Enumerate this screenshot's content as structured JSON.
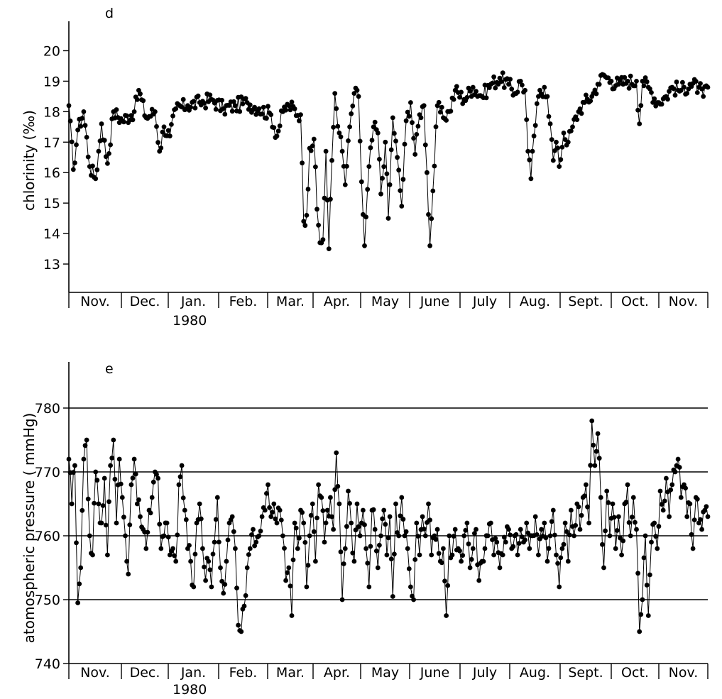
{
  "chart_data": [
    {
      "id": "d",
      "type": "line",
      "panel_label": "d",
      "ylabel": "chlorinity (‰)",
      "ylim": [
        12,
        20.5
      ],
      "yticks": [
        13,
        14,
        15,
        16,
        17,
        18,
        19,
        20
      ],
      "grid": false,
      "months": [
        "Nov.",
        "Dec.",
        "Jan.",
        "Feb.",
        "Mar.",
        "Apr.",
        "May",
        "June",
        "July",
        "Aug.",
        "Sept.",
        "Oct.",
        "Nov."
      ],
      "year_label": "1980",
      "x_unit": "days since 1 Nov 1979",
      "key_points": [
        [
          0,
          18.2
        ],
        [
          3,
          16.1
        ],
        [
          6,
          17.4
        ],
        [
          10,
          18.0
        ],
        [
          14,
          16.2
        ],
        [
          18,
          15.8
        ],
        [
          22,
          17.6
        ],
        [
          26,
          16.3
        ],
        [
          30,
          18.0
        ],
        [
          36,
          17.7
        ],
        [
          44,
          18.0
        ],
        [
          47,
          18.7
        ],
        [
          52,
          17.8
        ],
        [
          58,
          18.0
        ],
        [
          61,
          16.7
        ],
        [
          64,
          17.5
        ],
        [
          68,
          17.2
        ],
        [
          72,
          18.1
        ],
        [
          80,
          18.2
        ],
        [
          88,
          18.3
        ],
        [
          96,
          18.4
        ],
        [
          104,
          18.1
        ],
        [
          112,
          18.2
        ],
        [
          120,
          18.3
        ],
        [
          128,
          18.1
        ],
        [
          136,
          17.9
        ],
        [
          140,
          17.2
        ],
        [
          144,
          18.0
        ],
        [
          148,
          18.2
        ],
        [
          156,
          17.9
        ],
        [
          158,
          14.4
        ],
        [
          160,
          14.6
        ],
        [
          162,
          16.8
        ],
        [
          165,
          17.1
        ],
        [
          167,
          14.8
        ],
        [
          169,
          13.7
        ],
        [
          171,
          13.8
        ],
        [
          173,
          16.7
        ],
        [
          175,
          13.5
        ],
        [
          177,
          16.4
        ],
        [
          179,
          18.6
        ],
        [
          182,
          17.3
        ],
        [
          184,
          16.7
        ],
        [
          186,
          15.6
        ],
        [
          189,
          17.5
        ],
        [
          192,
          18.6
        ],
        [
          195,
          18.5
        ],
        [
          197,
          15.7
        ],
        [
          199,
          13.6
        ],
        [
          202,
          16.2
        ],
        [
          205,
          17.5
        ],
        [
          208,
          17.3
        ],
        [
          210,
          15.3
        ],
        [
          213,
          17.0
        ],
        [
          215,
          14.5
        ],
        [
          218,
          17.8
        ],
        [
          221,
          16.5
        ],
        [
          224,
          14.9
        ],
        [
          227,
          17.7
        ],
        [
          230,
          18.3
        ],
        [
          233,
          16.6
        ],
        [
          236,
          17.9
        ],
        [
          239,
          18.2
        ],
        [
          241,
          16.0
        ],
        [
          243,
          13.6
        ],
        [
          245,
          15.4
        ],
        [
          248,
          18.2
        ],
        [
          252,
          17.8
        ],
        [
          256,
          18.0
        ],
        [
          260,
          18.7
        ],
        [
          266,
          18.4
        ],
        [
          272,
          18.8
        ],
        [
          278,
          18.5
        ],
        [
          284,
          18.9
        ],
        [
          290,
          19.1
        ],
        [
          296,
          18.9
        ],
        [
          300,
          18.6
        ],
        [
          304,
          19.0
        ],
        [
          307,
          18.7
        ],
        [
          309,
          16.7
        ],
        [
          311,
          15.8
        ],
        [
          313,
          17.2
        ],
        [
          316,
          18.5
        ],
        [
          320,
          18.8
        ],
        [
          322,
          18.5
        ],
        [
          324,
          17.6
        ],
        [
          326,
          16.4
        ],
        [
          328,
          17.0
        ],
        [
          330,
          16.2
        ],
        [
          333,
          17.3
        ],
        [
          336,
          17.0
        ],
        [
          339,
          17.5
        ],
        [
          343,
          18.0
        ],
        [
          347,
          18.3
        ],
        [
          352,
          18.5
        ],
        [
          356,
          18.9
        ],
        [
          360,
          19.2
        ],
        [
          365,
          19.0
        ],
        [
          370,
          18.9
        ],
        [
          376,
          19.0
        ],
        [
          382,
          19.0
        ],
        [
          384,
          17.6
        ],
        [
          386,
          19.0
        ],
        [
          390,
          18.8
        ],
        [
          396,
          18.3
        ],
        [
          402,
          18.5
        ],
        [
          406,
          18.8
        ],
        [
          412,
          18.7
        ],
        [
          418,
          18.9
        ],
        [
          424,
          18.8
        ],
        [
          427,
          18.5
        ],
        [
          430,
          18.8
        ]
      ]
    },
    {
      "id": "e",
      "type": "line",
      "panel_label": "e",
      "ylabel": "atomospheric pressure ( mmHg)",
      "ylim": [
        740,
        785
      ],
      "yticks": [
        740,
        750,
        760,
        770,
        780
      ],
      "grid": true,
      "grid_lines": [
        750,
        760,
        770,
        780
      ],
      "months": [
        "Nov.",
        "Dec.",
        "Jan.",
        "Feb.",
        "Mar.",
        "Apr.",
        "May",
        "June",
        "July",
        "Aug.",
        "Sept.",
        "Oct.",
        "Nov."
      ],
      "year_label": "1980",
      "x_unit": "days since 1 Nov 1979",
      "key_points": [
        [
          0,
          772
        ],
        [
          2,
          765
        ],
        [
          4,
          771
        ],
        [
          6,
          749.5
        ],
        [
          8,
          755
        ],
        [
          10,
          772
        ],
        [
          12,
          775
        ],
        [
          14,
          760
        ],
        [
          16,
          757
        ],
        [
          18,
          770
        ],
        [
          20,
          765
        ],
        [
          22,
          762
        ],
        [
          24,
          769
        ],
        [
          26,
          757
        ],
        [
          28,
          771
        ],
        [
          30,
          775
        ],
        [
          32,
          762
        ],
        [
          34,
          772
        ],
        [
          36,
          766
        ],
        [
          38,
          760
        ],
        [
          40,
          754
        ],
        [
          42,
          768
        ],
        [
          44,
          772
        ],
        [
          46,
          765
        ],
        [
          48,
          763
        ],
        [
          50,
          761
        ],
        [
          52,
          758
        ],
        [
          54,
          764
        ],
        [
          56,
          766
        ],
        [
          58,
          770
        ],
        [
          60,
          769
        ],
        [
          62,
          758
        ],
        [
          64,
          760
        ],
        [
          66,
          762
        ],
        [
          68,
          757
        ],
        [
          70,
          758
        ],
        [
          72,
          756
        ],
        [
          74,
          768
        ],
        [
          76,
          771
        ],
        [
          78,
          764
        ],
        [
          80,
          758
        ],
        [
          82,
          756
        ],
        [
          84,
          752
        ],
        [
          86,
          762
        ],
        [
          88,
          765
        ],
        [
          90,
          758
        ],
        [
          92,
          753
        ],
        [
          94,
          756
        ],
        [
          96,
          752
        ],
        [
          98,
          759
        ],
        [
          100,
          766
        ],
        [
          102,
          755
        ],
        [
          104,
          751
        ],
        [
          106,
          756
        ],
        [
          108,
          762
        ],
        [
          110,
          763
        ],
        [
          112,
          758
        ],
        [
          114,
          746
        ],
        [
          116,
          745
        ],
        [
          118,
          749
        ],
        [
          120,
          755
        ],
        [
          122,
          758
        ],
        [
          124,
          761
        ],
        [
          126,
          759
        ],
        [
          128,
          760
        ],
        [
          130,
          763
        ],
        [
          132,
          764
        ],
        [
          134,
          768
        ],
        [
          136,
          763
        ],
        [
          138,
          765
        ],
        [
          140,
          762
        ],
        [
          142,
          764
        ],
        [
          144,
          760
        ],
        [
          146,
          753
        ],
        [
          148,
          755
        ],
        [
          150,
          747.5
        ],
        [
          152,
          762
        ],
        [
          154,
          758
        ],
        [
          156,
          764
        ],
        [
          158,
          762
        ],
        [
          160,
          752
        ],
        [
          162,
          760
        ],
        [
          164,
          765
        ],
        [
          166,
          756
        ],
        [
          168,
          768
        ],
        [
          170,
          766
        ],
        [
          172,
          759
        ],
        [
          174,
          764
        ],
        [
          176,
          766
        ],
        [
          178,
          761
        ],
        [
          180,
          773
        ],
        [
          182,
          765
        ],
        [
          184,
          750
        ],
        [
          186,
          758
        ],
        [
          188,
          767
        ],
        [
          190,
          762
        ],
        [
          192,
          756
        ],
        [
          194,
          765
        ],
        [
          196,
          760
        ],
        [
          198,
          764
        ],
        [
          200,
          758
        ],
        [
          202,
          752
        ],
        [
          204,
          764
        ],
        [
          206,
          761
        ],
        [
          208,
          755
        ],
        [
          210,
          760
        ],
        [
          212,
          764
        ],
        [
          214,
          757
        ],
        [
          216,
          763
        ],
        [
          218,
          750.5
        ],
        [
          220,
          765
        ],
        [
          222,
          760
        ],
        [
          224,
          766
        ],
        [
          226,
          760
        ],
        [
          228,
          758
        ],
        [
          230,
          752
        ],
        [
          232,
          750
        ],
        [
          234,
          762
        ],
        [
          236,
          757
        ],
        [
          238,
          763
        ],
        [
          240,
          760
        ],
        [
          242,
          765
        ],
        [
          244,
          757
        ],
        [
          246,
          760
        ],
        [
          248,
          761
        ],
        [
          250,
          756
        ],
        [
          252,
          758
        ],
        [
          254,
          747.5
        ],
        [
          256,
          760
        ],
        [
          258,
          757
        ],
        [
          260,
          761
        ],
        [
          262,
          758
        ],
        [
          264,
          756
        ],
        [
          266,
          760
        ],
        [
          268,
          762
        ],
        [
          270,
          755
        ],
        [
          272,
          758
        ],
        [
          274,
          761
        ],
        [
          276,
          753
        ],
        [
          278,
          756
        ],
        [
          280,
          758
        ],
        [
          282,
          760
        ],
        [
          284,
          762
        ],
        [
          286,
          757
        ],
        [
          288,
          759
        ],
        [
          290,
          755
        ],
        [
          292,
          757
        ],
        [
          294,
          759
        ],
        [
          296,
          761
        ],
        [
          298,
          758
        ],
        [
          300,
          760
        ],
        [
          302,
          757
        ],
        [
          304,
          761
        ],
        [
          306,
          759
        ],
        [
          308,
          762
        ],
        [
          310,
          758
        ],
        [
          312,
          760
        ],
        [
          314,
          763
        ],
        [
          316,
          757
        ],
        [
          318,
          761
        ],
        [
          320,
          762
        ],
        [
          322,
          756
        ],
        [
          324,
          760
        ],
        [
          326,
          764
        ],
        [
          328,
          757
        ],
        [
          330,
          752
        ],
        [
          332,
          758
        ],
        [
          334,
          762
        ],
        [
          336,
          756
        ],
        [
          338,
          764
        ],
        [
          340,
          760
        ],
        [
          342,
          765
        ],
        [
          344,
          761
        ],
        [
          346,
          766
        ],
        [
          348,
          768
        ],
        [
          350,
          762
        ],
        [
          352,
          778
        ],
        [
          354,
          771
        ],
        [
          356,
          776
        ],
        [
          358,
          766
        ],
        [
          360,
          755
        ],
        [
          362,
          767
        ],
        [
          364,
          760
        ],
        [
          366,
          765
        ],
        [
          368,
          758
        ],
        [
          370,
          763
        ],
        [
          372,
          757
        ],
        [
          374,
          765
        ],
        [
          376,
          768
        ],
        [
          378,
          760
        ],
        [
          380,
          766
        ],
        [
          382,
          761
        ],
        [
          384,
          745
        ],
        [
          386,
          750
        ],
        [
          388,
          760
        ],
        [
          390,
          747.5
        ],
        [
          392,
          759
        ],
        [
          394,
          762
        ],
        [
          396,
          758
        ],
        [
          398,
          767
        ],
        [
          400,
          764
        ],
        [
          402,
          769
        ],
        [
          404,
          763
        ],
        [
          406,
          768
        ],
        [
          408,
          770
        ],
        [
          410,
          772
        ],
        [
          412,
          766
        ],
        [
          414,
          768
        ],
        [
          416,
          763
        ],
        [
          418,
          765
        ],
        [
          420,
          758
        ],
        [
          422,
          766
        ],
        [
          424,
          762
        ],
        [
          426,
          761
        ],
        [
          428,
          764
        ],
        [
          430,
          763
        ]
      ]
    }
  ]
}
